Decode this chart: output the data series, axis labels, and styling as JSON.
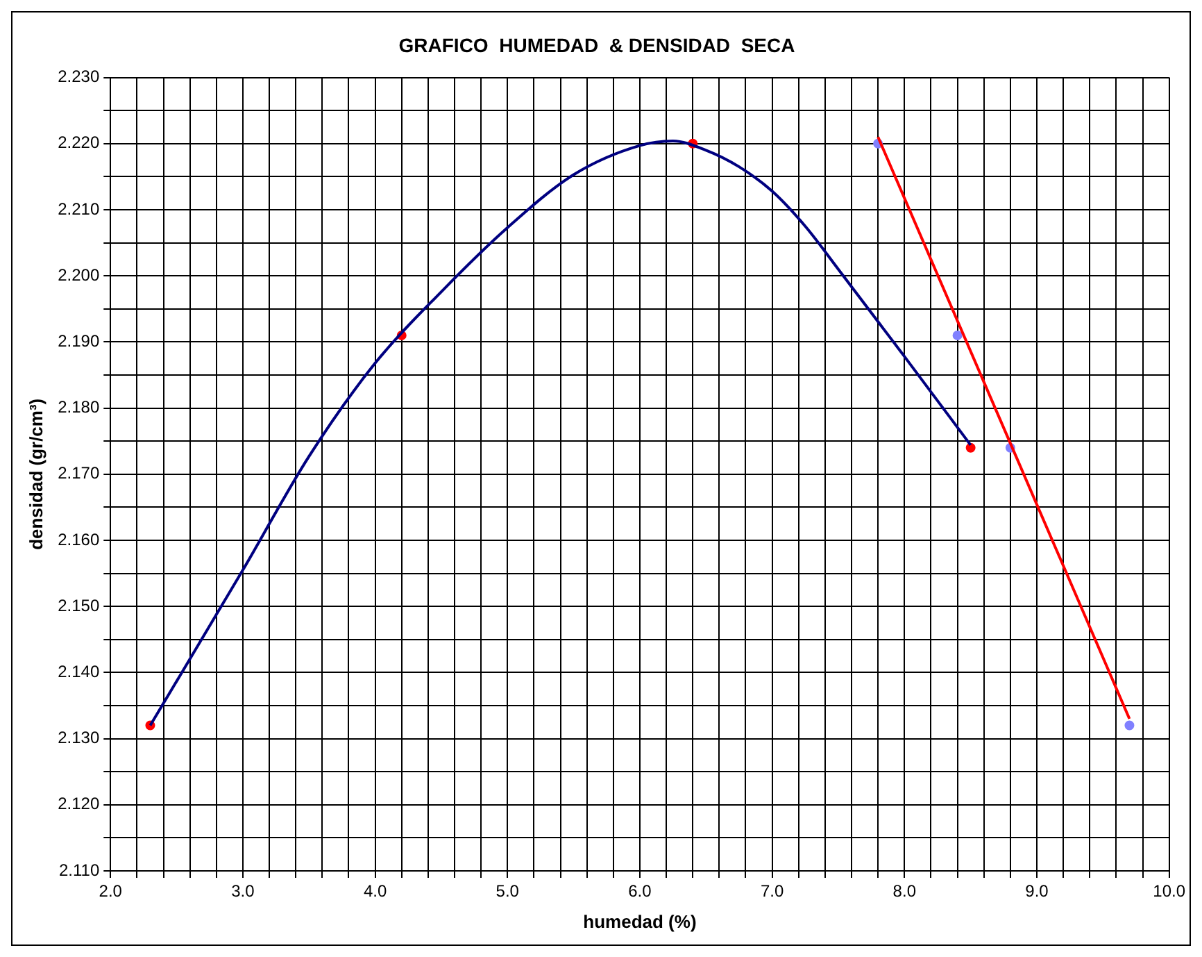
{
  "chart_data": {
    "type": "scatter",
    "title": "GRAFICO  HUMEDAD  & DENSIDAD  SECA",
    "xlabel": "humedad (%)",
    "ylabel": "densidad (gr/cm³)",
    "xlim": [
      2.0,
      10.0
    ],
    "ylim": [
      2.11,
      2.23
    ],
    "xticks": [
      {
        "value": 2.0,
        "label": "2.0"
      },
      {
        "value": 2.2,
        "label": null
      },
      {
        "value": 2.4,
        "label": null
      },
      {
        "value": 2.6,
        "label": null
      },
      {
        "value": 2.8,
        "label": null
      },
      {
        "value": 3.0,
        "label": "3.0"
      },
      {
        "value": 3.2,
        "label": null
      },
      {
        "value": 3.4,
        "label": null
      },
      {
        "value": 3.6,
        "label": null
      },
      {
        "value": 3.8,
        "label": null
      },
      {
        "value": 4.0,
        "label": "4.0"
      },
      {
        "value": 4.2,
        "label": null
      },
      {
        "value": 4.4,
        "label": null
      },
      {
        "value": 4.6,
        "label": null
      },
      {
        "value": 4.8,
        "label": null
      },
      {
        "value": 5.0,
        "label": "5.0"
      },
      {
        "value": 5.2,
        "label": null
      },
      {
        "value": 5.4,
        "label": null
      },
      {
        "value": 5.6,
        "label": null
      },
      {
        "value": 5.8,
        "label": null
      },
      {
        "value": 6.0,
        "label": "6.0"
      },
      {
        "value": 6.2,
        "label": null
      },
      {
        "value": 6.4,
        "label": null
      },
      {
        "value": 6.6,
        "label": null
      },
      {
        "value": 6.8,
        "label": null
      },
      {
        "value": 7.0,
        "label": "7.0"
      },
      {
        "value": 7.2,
        "label": null
      },
      {
        "value": 7.4,
        "label": null
      },
      {
        "value": 7.6,
        "label": null
      },
      {
        "value": 7.8,
        "label": null
      },
      {
        "value": 8.0,
        "label": "8.0"
      },
      {
        "value": 8.2,
        "label": null
      },
      {
        "value": 8.4,
        "label": null
      },
      {
        "value": 8.6,
        "label": null
      },
      {
        "value": 8.8,
        "label": null
      },
      {
        "value": 9.0,
        "label": "9.0"
      },
      {
        "value": 9.2,
        "label": null
      },
      {
        "value": 9.4,
        "label": null
      },
      {
        "value": 9.6,
        "label": null
      },
      {
        "value": 9.8,
        "label": null
      },
      {
        "value": 10.0,
        "label": "10.0"
      }
    ],
    "yticks": [
      {
        "value": 2.11,
        "label": "2.110"
      },
      {
        "value": 2.115,
        "label": null
      },
      {
        "value": 2.12,
        "label": "2.120"
      },
      {
        "value": 2.125,
        "label": null
      },
      {
        "value": 2.13,
        "label": "2.130"
      },
      {
        "value": 2.135,
        "label": null
      },
      {
        "value": 2.14,
        "label": "2.140"
      },
      {
        "value": 2.145,
        "label": null
      },
      {
        "value": 2.15,
        "label": "2.150"
      },
      {
        "value": 2.155,
        "label": null
      },
      {
        "value": 2.16,
        "label": "2.160"
      },
      {
        "value": 2.165,
        "label": null
      },
      {
        "value": 2.17,
        "label": "2.170"
      },
      {
        "value": 2.175,
        "label": null
      },
      {
        "value": 2.18,
        "label": "2.180"
      },
      {
        "value": 2.185,
        "label": null
      },
      {
        "value": 2.19,
        "label": "2.190"
      },
      {
        "value": 2.195,
        "label": null
      },
      {
        "value": 2.2,
        "label": "2.200"
      },
      {
        "value": 2.205,
        "label": null
      },
      {
        "value": 2.21,
        "label": "2.210"
      },
      {
        "value": 2.215,
        "label": null
      },
      {
        "value": 2.22,
        "label": "2.220"
      },
      {
        "value": 2.225,
        "label": null
      },
      {
        "value": 2.23,
        "label": "2.230"
      }
    ],
    "grid": true,
    "series": [
      {
        "type": "line",
        "color": "#000080",
        "marker": "none",
        "x": [
          2.3,
          3.0,
          3.5,
          4.0,
          4.5,
          5.0,
          5.5,
          6.0,
          6.25,
          6.5,
          6.75,
          7.0,
          7.25,
          7.5,
          8.0,
          8.5
        ],
        "values": [
          2.132,
          2.1555,
          2.1727,
          2.1868,
          2.1976,
          2.2073,
          2.2153,
          2.2197,
          2.2204,
          2.219,
          2.2165,
          2.2128,
          2.2075,
          2.201,
          2.1878,
          2.1744
        ]
      },
      {
        "type": "line",
        "color": "#ff0000",
        "marker": "none",
        "x": [
          7.8,
          9.7
        ],
        "values": [
          2.221,
          2.133
        ]
      },
      {
        "color": "#8080ff",
        "marker": "circle",
        "x": [
          7.8,
          8.4,
          8.8,
          9.7
        ],
        "values": [
          2.22,
          2.191,
          2.174,
          2.132
        ]
      },
      {
        "color": "#ff0000",
        "marker": "circle",
        "x": [
          2.3,
          4.2,
          6.4,
          8.5
        ],
        "values": [
          2.132,
          2.191,
          2.22,
          2.174
        ]
      }
    ]
  }
}
